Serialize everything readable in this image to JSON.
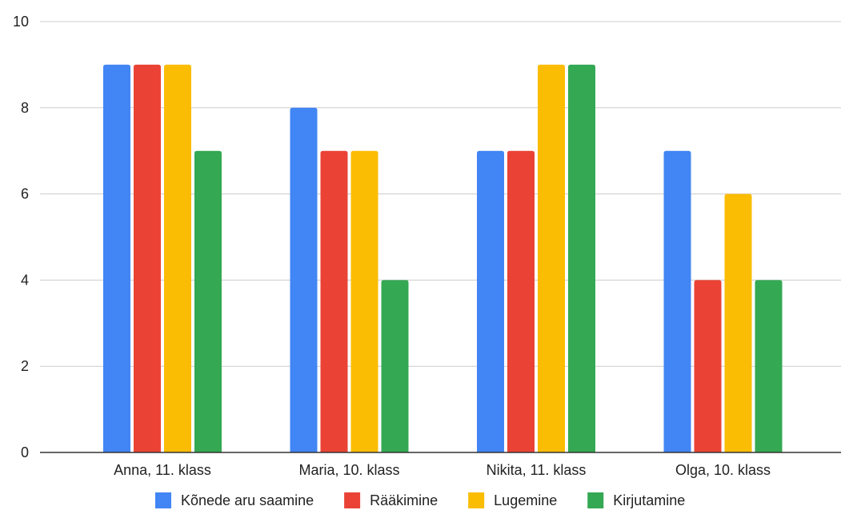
{
  "chart_data": {
    "type": "bar",
    "title": "",
    "xlabel": "",
    "ylabel": "",
    "categories": [
      "Anna, 11. klass",
      "Maria, 10. klass",
      "Nikita, 11. klass",
      "Olga, 10. klass"
    ],
    "series": [
      {
        "name": "Kõnede aru saamine",
        "color": "#4285F4",
        "values": [
          9,
          8,
          7,
          7
        ]
      },
      {
        "name": "Rääkimine",
        "color": "#EA4335",
        "values": [
          9,
          7,
          7,
          4
        ]
      },
      {
        "name": "Lugemine",
        "color": "#FBBC04",
        "values": [
          9,
          7,
          9,
          6
        ]
      },
      {
        "name": "Kirjutamine",
        "color": "#34A853",
        "values": [
          7,
          4,
          9,
          4
        ]
      }
    ],
    "ylim": [
      0,
      10
    ],
    "yticks": [
      0,
      2,
      4,
      6,
      8,
      10
    ],
    "grid": true,
    "legend_position": "bottom"
  }
}
